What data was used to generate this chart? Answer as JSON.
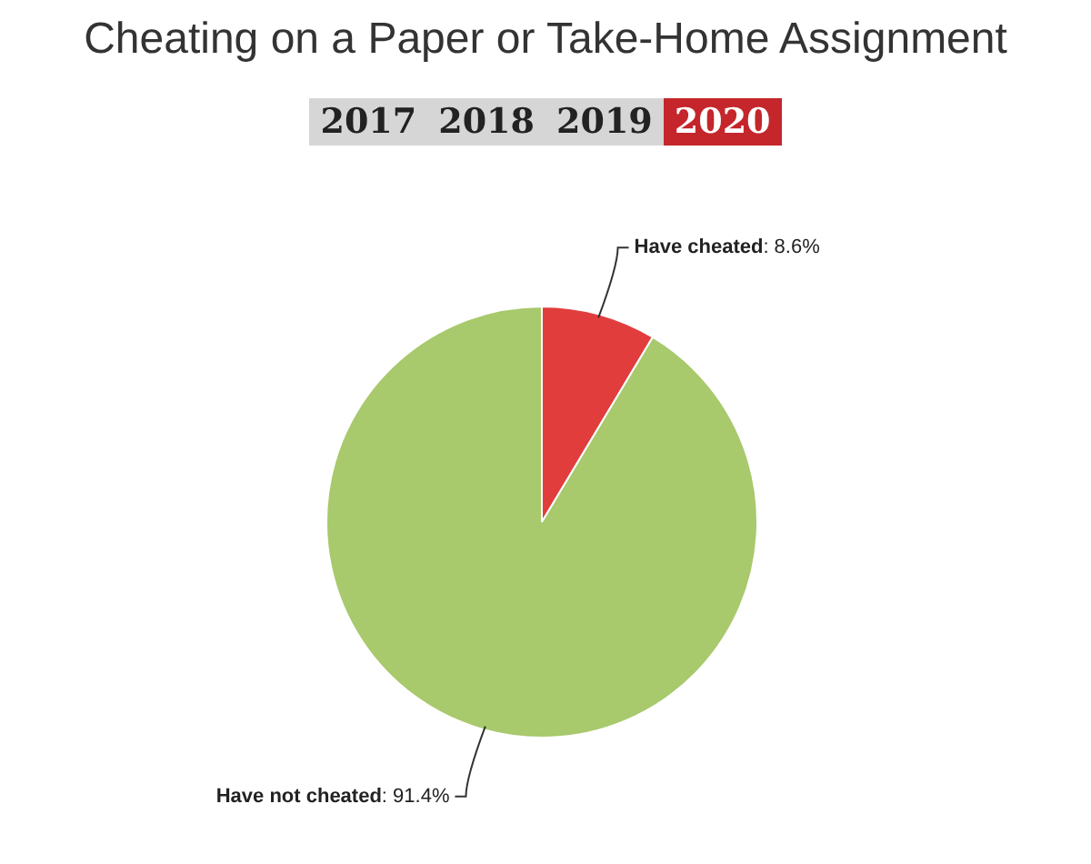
{
  "chart_data": {
    "type": "pie",
    "title": "Cheating on a Paper or Take-Home Assignment",
    "annotations": [
      "2017",
      "2018",
      "2019",
      "2020"
    ],
    "categories": [
      "Have cheated",
      "Have not cheated"
    ],
    "values": [
      8.6,
      91.4
    ],
    "colors": [
      "#e23d3d",
      "#a8c96c"
    ],
    "value_labels": [
      ": 8.6%",
      ": 91.4%"
    ],
    "legend": false
  }
}
